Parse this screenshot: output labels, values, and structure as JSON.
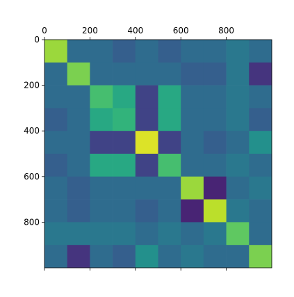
{
  "chart_data": {
    "type": "heatmap",
    "colormap": "viridis",
    "vlim": [
      0,
      1
    ],
    "bins": [
      0,
      100,
      200,
      300,
      400,
      500,
      600,
      700,
      800,
      900,
      1000
    ],
    "values": [
      [
        0.85,
        0.35,
        0.35,
        0.3,
        0.35,
        0.3,
        0.35,
        0.35,
        0.4,
        0.35
      ],
      [
        0.35,
        0.8,
        0.35,
        0.35,
        0.35,
        0.35,
        0.3,
        0.3,
        0.4,
        0.15
      ],
      [
        0.35,
        0.35,
        0.7,
        0.6,
        0.2,
        0.6,
        0.35,
        0.35,
        0.4,
        0.35
      ],
      [
        0.3,
        0.35,
        0.6,
        0.65,
        0.2,
        0.6,
        0.35,
        0.35,
        0.4,
        0.3
      ],
      [
        0.35,
        0.35,
        0.2,
        0.2,
        0.95,
        0.2,
        0.35,
        0.3,
        0.35,
        0.5
      ],
      [
        0.3,
        0.35,
        0.6,
        0.6,
        0.2,
        0.7,
        0.35,
        0.35,
        0.4,
        0.35
      ],
      [
        0.35,
        0.3,
        0.35,
        0.35,
        0.35,
        0.35,
        0.85,
        0.1,
        0.35,
        0.4
      ],
      [
        0.35,
        0.3,
        0.35,
        0.35,
        0.3,
        0.35,
        0.1,
        0.9,
        0.4,
        0.35
      ],
      [
        0.4,
        0.4,
        0.4,
        0.4,
        0.35,
        0.4,
        0.35,
        0.4,
        0.75,
        0.35
      ],
      [
        0.35,
        0.15,
        0.35,
        0.3,
        0.5,
        0.35,
        0.4,
        0.35,
        0.35,
        0.8
      ]
    ],
    "xlim": [
      0,
      1000
    ],
    "ylim": [
      0,
      1000
    ],
    "invert_y": true,
    "xticks": [
      0,
      200,
      400,
      600,
      800
    ],
    "yticks": [
      0,
      200,
      400,
      600,
      800
    ]
  }
}
